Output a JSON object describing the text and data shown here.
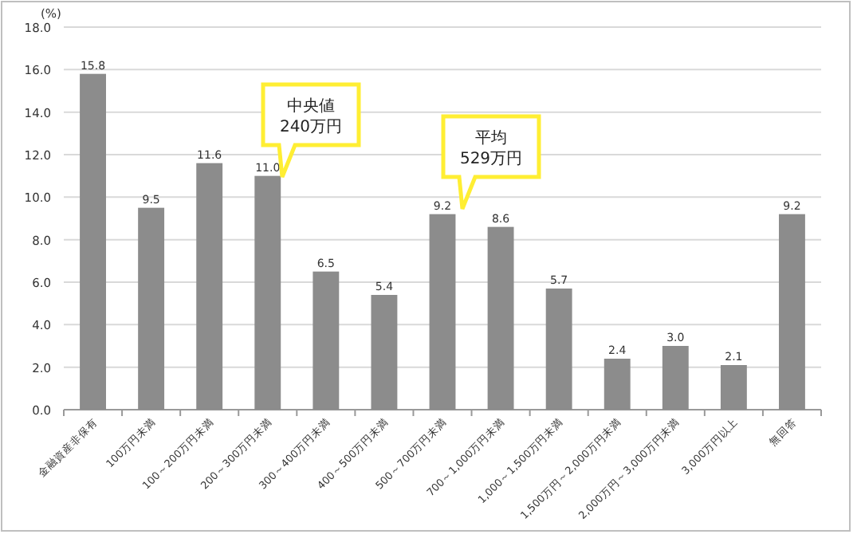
{
  "chart_data": {
    "type": "bar",
    "ylabel": "(%)",
    "categories": [
      "金融資産非保有",
      "100万円未満",
      "100～200万円未満",
      "200～300万円未満",
      "300～400万円未満",
      "400～500万円未満",
      "500～700万円未満",
      "700～1,000万円未満",
      "1,000～1,500万円未満",
      "1,500万円～2,000万円未満",
      "2,000万円～3,000万円未満",
      "3,000万円以上",
      "無回答"
    ],
    "values": [
      15.8,
      9.5,
      11.6,
      11.0,
      6.5,
      5.4,
      9.2,
      8.6,
      5.7,
      2.4,
      3.0,
      2.1,
      9.2
    ],
    "color": "#8c8c8c",
    "ylim": [
      0,
      18
    ],
    "yticks": [
      {
        "value": 0,
        "label": "0.0"
      },
      {
        "value": 2,
        "label": "2.0"
      },
      {
        "value": 4,
        "label": "4.0"
      },
      {
        "value": 6,
        "label": "6.0"
      },
      {
        "value": 8,
        "label": "8.0"
      },
      {
        "value": 10,
        "label": "10.0"
      },
      {
        "value": 12,
        "label": "12.0"
      },
      {
        "value": 14,
        "label": "14.0"
      },
      {
        "value": 16,
        "label": "16.0"
      },
      {
        "value": 18,
        "label": "18.0"
      }
    ],
    "grid": "y",
    "value_labels": [
      "15.8",
      "9.5",
      "11.6",
      "11.0",
      "6.5",
      "5.4",
      "9.2",
      "8.6",
      "5.7",
      "2.4",
      "3.0",
      "2.1",
      "9.2"
    ],
    "annotations": [
      "中央値 240万円",
      "平均 529万円"
    ]
  }
}
